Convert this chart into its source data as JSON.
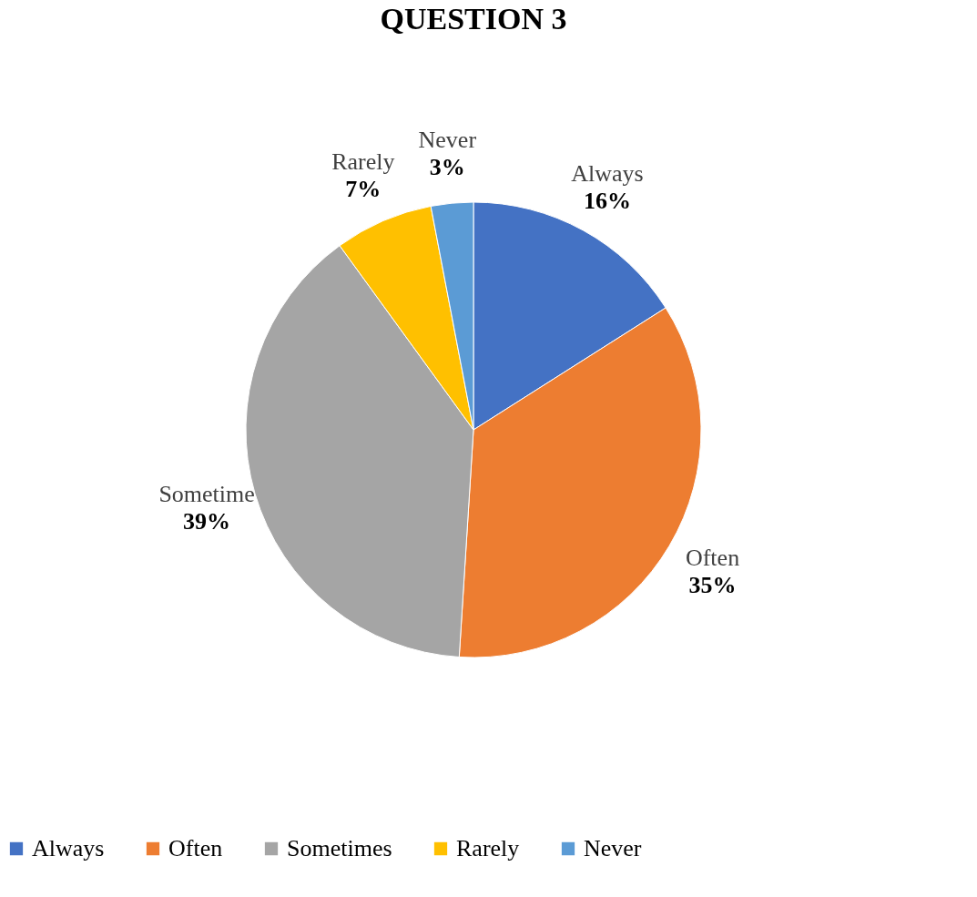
{
  "chart_data": {
    "type": "pie",
    "title": "QUESTION 3",
    "categories": [
      "Always",
      "Often",
      "Sometimes",
      "Rarely",
      "Never"
    ],
    "values": [
      16,
      35,
      39,
      7,
      3
    ],
    "colors": [
      "#4472c4",
      "#ed7d31",
      "#a5a5a5",
      "#ffc000",
      "#5b9bd5"
    ],
    "annotations": [
      "Always",
      "Often",
      "Sometime",
      "Rarely",
      "Never"
    ],
    "value_labels": [
      "16%",
      "35%",
      "39%",
      "7%",
      "3%"
    ],
    "legend": "bottom"
  }
}
